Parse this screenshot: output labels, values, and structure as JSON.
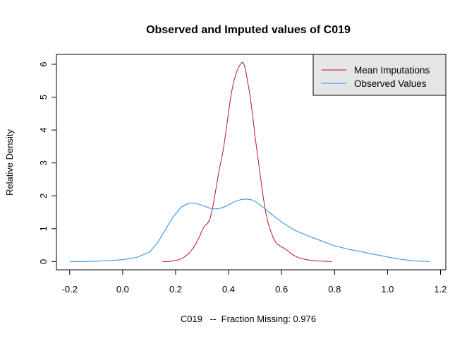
{
  "chart_data": {
    "type": "line",
    "title": "Observed and Imputed values of C019",
    "xlabel": "C019   --  Fraction Missing: 0.976",
    "ylabel": "Relative Density",
    "xlim": [
      -0.25,
      1.22
    ],
    "ylim": [
      -0.25,
      6.3
    ],
    "x_ticks": [
      "-0.2",
      "0.0",
      "0.2",
      "0.4",
      "0.6",
      "0.8",
      "1.0",
      "1.2"
    ],
    "y_ticks": [
      "0",
      "1",
      "2",
      "3",
      "4",
      "5",
      "6"
    ],
    "grid": false,
    "legend_position": "top-right",
    "series": [
      {
        "name": "Mean Imputations",
        "color": "#b2182b",
        "x": [
          0.15,
          0.17,
          0.19,
          0.21,
          0.23,
          0.25,
          0.27,
          0.29,
          0.3,
          0.31,
          0.32,
          0.33,
          0.34,
          0.35,
          0.36,
          0.37,
          0.38,
          0.39,
          0.4,
          0.41,
          0.42,
          0.43,
          0.44,
          0.45,
          0.455,
          0.46,
          0.465,
          0.47,
          0.48,
          0.49,
          0.5,
          0.51,
          0.52,
          0.53,
          0.54,
          0.55,
          0.56,
          0.57,
          0.58,
          0.59,
          0.6,
          0.61,
          0.62,
          0.63,
          0.64,
          0.65,
          0.67,
          0.7,
          0.73,
          0.76,
          0.79
        ],
        "y": [
          0.0,
          0.0,
          0.02,
          0.05,
          0.12,
          0.25,
          0.45,
          0.75,
          0.95,
          1.1,
          1.15,
          1.3,
          1.65,
          2.1,
          2.6,
          3.0,
          3.4,
          3.95,
          4.55,
          5.1,
          5.5,
          5.75,
          5.95,
          6.05,
          6.05,
          5.95,
          5.8,
          5.55,
          5.1,
          4.5,
          3.8,
          3.2,
          2.6,
          2.0,
          1.5,
          1.15,
          0.9,
          0.7,
          0.55,
          0.5,
          0.45,
          0.4,
          0.35,
          0.28,
          0.22,
          0.17,
          0.1,
          0.05,
          0.02,
          0.01,
          0.0
        ]
      },
      {
        "name": "Observed Values",
        "color": "#1f8fe6",
        "x": [
          -0.2,
          -0.15,
          -0.1,
          -0.05,
          0.0,
          0.05,
          0.1,
          0.13,
          0.16,
          0.19,
          0.22,
          0.25,
          0.27,
          0.29,
          0.31,
          0.33,
          0.35,
          0.37,
          0.39,
          0.41,
          0.43,
          0.45,
          0.47,
          0.49,
          0.51,
          0.53,
          0.56,
          0.6,
          0.65,
          0.7,
          0.75,
          0.8,
          0.85,
          0.9,
          0.95,
          1.0,
          1.05,
          1.1,
          1.16
        ],
        "y": [
          0.0,
          0.0,
          0.01,
          0.03,
          0.06,
          0.12,
          0.28,
          0.55,
          0.95,
          1.35,
          1.65,
          1.78,
          1.78,
          1.74,
          1.68,
          1.62,
          1.6,
          1.62,
          1.68,
          1.77,
          1.85,
          1.89,
          1.9,
          1.87,
          1.78,
          1.65,
          1.45,
          1.2,
          0.95,
          0.78,
          0.63,
          0.48,
          0.38,
          0.3,
          0.22,
          0.14,
          0.07,
          0.02,
          0.0
        ]
      }
    ]
  }
}
